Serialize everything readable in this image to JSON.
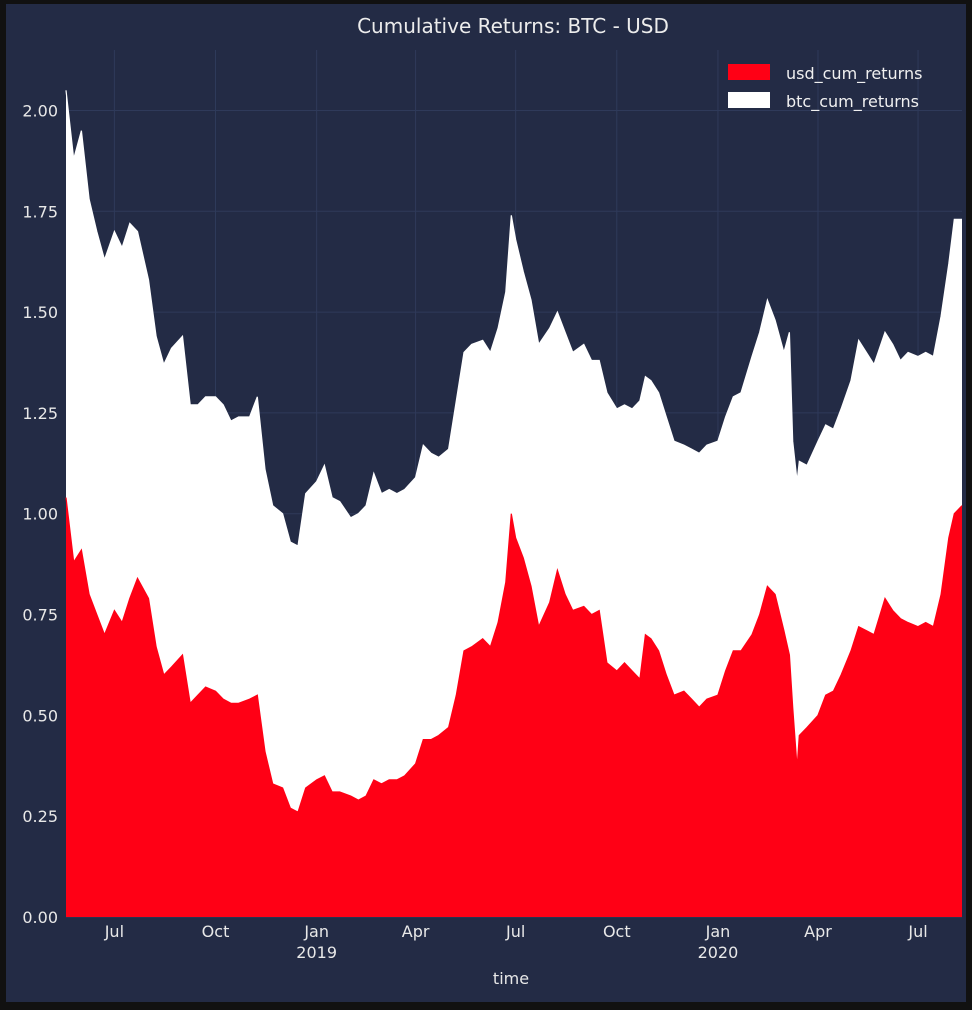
{
  "chart_data": {
    "type": "area",
    "title": "Cumulative Returns: BTC - USD",
    "xlabel": "time",
    "ylabel": "",
    "ylim": [
      0,
      2.15
    ],
    "x_range": [
      "2018-05-18",
      "2020-08-10"
    ],
    "yticks": [
      0.0,
      0.25,
      0.5,
      0.75,
      1.0,
      1.25,
      1.5,
      1.75,
      2.0
    ],
    "ytick_labels": [
      "0.00",
      "0.25",
      "0.50",
      "0.75",
      "1.00",
      "1.25",
      "1.50",
      "1.75",
      "2.00"
    ],
    "xticks": [
      {
        "date": "2018-07-01",
        "label": "Jul",
        "year": ""
      },
      {
        "date": "2018-10-01",
        "label": "Oct",
        "year": ""
      },
      {
        "date": "2019-01-01",
        "label": "Jan",
        "year": "2019"
      },
      {
        "date": "2019-04-01",
        "label": "Apr",
        "year": ""
      },
      {
        "date": "2019-07-01",
        "label": "Jul",
        "year": ""
      },
      {
        "date": "2019-10-01",
        "label": "Oct",
        "year": ""
      },
      {
        "date": "2020-01-01",
        "label": "Jan",
        "year": "2020"
      },
      {
        "date": "2020-04-01",
        "label": "Apr",
        "year": ""
      },
      {
        "date": "2020-07-01",
        "label": "Jul",
        "year": ""
      }
    ],
    "legend_position": "top-right",
    "grid": true,
    "series": [
      {
        "name": "btc_cum_returns",
        "color": "#ffffff",
        "points": [
          [
            "2018-05-18",
            2.05
          ],
          [
            "2018-05-25",
            1.88
          ],
          [
            "2018-06-01",
            1.95
          ],
          [
            "2018-06-08",
            1.78
          ],
          [
            "2018-06-15",
            1.7
          ],
          [
            "2018-06-22",
            1.63
          ],
          [
            "2018-07-01",
            1.7
          ],
          [
            "2018-07-08",
            1.66
          ],
          [
            "2018-07-15",
            1.72
          ],
          [
            "2018-07-22",
            1.7
          ],
          [
            "2018-08-01",
            1.58
          ],
          [
            "2018-08-08",
            1.44
          ],
          [
            "2018-08-15",
            1.37
          ],
          [
            "2018-08-22",
            1.41
          ],
          [
            "2018-09-01",
            1.44
          ],
          [
            "2018-09-08",
            1.27
          ],
          [
            "2018-09-15",
            1.27
          ],
          [
            "2018-09-22",
            1.29
          ],
          [
            "2018-10-01",
            1.29
          ],
          [
            "2018-10-08",
            1.27
          ],
          [
            "2018-10-15",
            1.23
          ],
          [
            "2018-10-22",
            1.24
          ],
          [
            "2018-11-01",
            1.24
          ],
          [
            "2018-11-08",
            1.29
          ],
          [
            "2018-11-15",
            1.11
          ],
          [
            "2018-11-22",
            1.02
          ],
          [
            "2018-12-01",
            1.0
          ],
          [
            "2018-12-08",
            0.93
          ],
          [
            "2018-12-15",
            0.92
          ],
          [
            "2018-12-22",
            1.05
          ],
          [
            "2019-01-01",
            1.08
          ],
          [
            "2019-01-08",
            1.12
          ],
          [
            "2019-01-15",
            1.04
          ],
          [
            "2019-01-22",
            1.03
          ],
          [
            "2019-02-01",
            0.99
          ],
          [
            "2019-02-08",
            1.0
          ],
          [
            "2019-02-15",
            1.02
          ],
          [
            "2019-02-22",
            1.1
          ],
          [
            "2019-03-01",
            1.05
          ],
          [
            "2019-03-08",
            1.06
          ],
          [
            "2019-03-15",
            1.05
          ],
          [
            "2019-03-22",
            1.06
          ],
          [
            "2019-04-01",
            1.09
          ],
          [
            "2019-04-08",
            1.17
          ],
          [
            "2019-04-15",
            1.15
          ],
          [
            "2019-04-22",
            1.14
          ],
          [
            "2019-05-01",
            1.16
          ],
          [
            "2019-05-08",
            1.28
          ],
          [
            "2019-05-15",
            1.4
          ],
          [
            "2019-05-22",
            1.42
          ],
          [
            "2019-06-01",
            1.43
          ],
          [
            "2019-06-08",
            1.4
          ],
          [
            "2019-06-15",
            1.46
          ],
          [
            "2019-06-22",
            1.55
          ],
          [
            "2019-06-27",
            1.74
          ],
          [
            "2019-07-01",
            1.68
          ],
          [
            "2019-07-08",
            1.6
          ],
          [
            "2019-07-15",
            1.53
          ],
          [
            "2019-07-22",
            1.42
          ],
          [
            "2019-08-01",
            1.46
          ],
          [
            "2019-08-08",
            1.5
          ],
          [
            "2019-08-15",
            1.45
          ],
          [
            "2019-08-22",
            1.4
          ],
          [
            "2019-09-01",
            1.42
          ],
          [
            "2019-09-08",
            1.38
          ],
          [
            "2019-09-15",
            1.38
          ],
          [
            "2019-09-22",
            1.3
          ],
          [
            "2019-10-01",
            1.26
          ],
          [
            "2019-10-08",
            1.27
          ],
          [
            "2019-10-15",
            1.26
          ],
          [
            "2019-10-22",
            1.28
          ],
          [
            "2019-10-27",
            1.34
          ],
          [
            "2019-11-01",
            1.33
          ],
          [
            "2019-11-08",
            1.3
          ],
          [
            "2019-11-15",
            1.24
          ],
          [
            "2019-11-22",
            1.18
          ],
          [
            "2019-12-01",
            1.17
          ],
          [
            "2019-12-08",
            1.16
          ],
          [
            "2019-12-15",
            1.15
          ],
          [
            "2019-12-22",
            1.17
          ],
          [
            "2020-01-01",
            1.18
          ],
          [
            "2020-01-08",
            1.24
          ],
          [
            "2020-01-15",
            1.29
          ],
          [
            "2020-01-22",
            1.3
          ],
          [
            "2020-02-01",
            1.39
          ],
          [
            "2020-02-08",
            1.45
          ],
          [
            "2020-02-15",
            1.53
          ],
          [
            "2020-02-22",
            1.48
          ],
          [
            "2020-03-01",
            1.4
          ],
          [
            "2020-03-06",
            1.45
          ],
          [
            "2020-03-09",
            1.18
          ],
          [
            "2020-03-13",
            1.08
          ],
          [
            "2020-03-15",
            1.13
          ],
          [
            "2020-03-22",
            1.12
          ],
          [
            "2020-04-01",
            1.18
          ],
          [
            "2020-04-08",
            1.22
          ],
          [
            "2020-04-15",
            1.21
          ],
          [
            "2020-04-22",
            1.26
          ],
          [
            "2020-05-01",
            1.33
          ],
          [
            "2020-05-08",
            1.43
          ],
          [
            "2020-05-15",
            1.4
          ],
          [
            "2020-05-22",
            1.37
          ],
          [
            "2020-06-01",
            1.45
          ],
          [
            "2020-06-08",
            1.42
          ],
          [
            "2020-06-15",
            1.38
          ],
          [
            "2020-06-22",
            1.4
          ],
          [
            "2020-07-01",
            1.39
          ],
          [
            "2020-07-08",
            1.4
          ],
          [
            "2020-07-15",
            1.39
          ],
          [
            "2020-07-22",
            1.49
          ],
          [
            "2020-07-29",
            1.62
          ],
          [
            "2020-08-03",
            1.73
          ],
          [
            "2020-08-10",
            1.73
          ]
        ]
      },
      {
        "name": "usd_cum_returns",
        "color": "#ff0015",
        "points": [
          [
            "2018-05-18",
            1.04
          ],
          [
            "2018-05-25",
            0.88
          ],
          [
            "2018-06-01",
            0.91
          ],
          [
            "2018-06-08",
            0.8
          ],
          [
            "2018-06-15",
            0.75
          ],
          [
            "2018-06-22",
            0.7
          ],
          [
            "2018-07-01",
            0.76
          ],
          [
            "2018-07-08",
            0.73
          ],
          [
            "2018-07-15",
            0.79
          ],
          [
            "2018-07-22",
            0.84
          ],
          [
            "2018-08-01",
            0.79
          ],
          [
            "2018-08-08",
            0.67
          ],
          [
            "2018-08-15",
            0.6
          ],
          [
            "2018-08-22",
            0.62
          ],
          [
            "2018-09-01",
            0.65
          ],
          [
            "2018-09-08",
            0.53
          ],
          [
            "2018-09-15",
            0.55
          ],
          [
            "2018-09-22",
            0.57
          ],
          [
            "2018-10-01",
            0.56
          ],
          [
            "2018-10-08",
            0.54
          ],
          [
            "2018-10-15",
            0.53
          ],
          [
            "2018-10-22",
            0.53
          ],
          [
            "2018-11-01",
            0.54
          ],
          [
            "2018-11-08",
            0.55
          ],
          [
            "2018-11-15",
            0.41
          ],
          [
            "2018-11-22",
            0.33
          ],
          [
            "2018-12-01",
            0.32
          ],
          [
            "2018-12-08",
            0.27
          ],
          [
            "2018-12-15",
            0.26
          ],
          [
            "2018-12-22",
            0.32
          ],
          [
            "2019-01-01",
            0.34
          ],
          [
            "2019-01-08",
            0.35
          ],
          [
            "2019-01-15",
            0.31
          ],
          [
            "2019-01-22",
            0.31
          ],
          [
            "2019-02-01",
            0.3
          ],
          [
            "2019-02-08",
            0.29
          ],
          [
            "2019-02-15",
            0.3
          ],
          [
            "2019-02-22",
            0.34
          ],
          [
            "2019-03-01",
            0.33
          ],
          [
            "2019-03-08",
            0.34
          ],
          [
            "2019-03-15",
            0.34
          ],
          [
            "2019-03-22",
            0.35
          ],
          [
            "2019-04-01",
            0.38
          ],
          [
            "2019-04-08",
            0.44
          ],
          [
            "2019-04-15",
            0.44
          ],
          [
            "2019-04-22",
            0.45
          ],
          [
            "2019-05-01",
            0.47
          ],
          [
            "2019-05-08",
            0.55
          ],
          [
            "2019-05-15",
            0.66
          ],
          [
            "2019-05-22",
            0.67
          ],
          [
            "2019-06-01",
            0.69
          ],
          [
            "2019-06-08",
            0.67
          ],
          [
            "2019-06-15",
            0.73
          ],
          [
            "2019-06-22",
            0.83
          ],
          [
            "2019-06-27",
            1.0
          ],
          [
            "2019-07-01",
            0.94
          ],
          [
            "2019-07-08",
            0.89
          ],
          [
            "2019-07-15",
            0.82
          ],
          [
            "2019-07-22",
            0.72
          ],
          [
            "2019-08-01",
            0.78
          ],
          [
            "2019-08-08",
            0.86
          ],
          [
            "2019-08-15",
            0.8
          ],
          [
            "2019-08-22",
            0.76
          ],
          [
            "2019-09-01",
            0.77
          ],
          [
            "2019-09-08",
            0.75
          ],
          [
            "2019-09-15",
            0.76
          ],
          [
            "2019-09-22",
            0.63
          ],
          [
            "2019-10-01",
            0.61
          ],
          [
            "2019-10-08",
            0.63
          ],
          [
            "2019-10-15",
            0.61
          ],
          [
            "2019-10-22",
            0.59
          ],
          [
            "2019-10-27",
            0.7
          ],
          [
            "2019-11-01",
            0.69
          ],
          [
            "2019-11-08",
            0.66
          ],
          [
            "2019-11-15",
            0.6
          ],
          [
            "2019-11-22",
            0.55
          ],
          [
            "2019-12-01",
            0.56
          ],
          [
            "2019-12-08",
            0.54
          ],
          [
            "2019-12-15",
            0.52
          ],
          [
            "2019-12-22",
            0.54
          ],
          [
            "2020-01-01",
            0.55
          ],
          [
            "2020-01-08",
            0.61
          ],
          [
            "2020-01-15",
            0.66
          ],
          [
            "2020-01-22",
            0.66
          ],
          [
            "2020-02-01",
            0.7
          ],
          [
            "2020-02-08",
            0.75
          ],
          [
            "2020-02-15",
            0.82
          ],
          [
            "2020-02-22",
            0.8
          ],
          [
            "2020-03-01",
            0.71
          ],
          [
            "2020-03-06",
            0.65
          ],
          [
            "2020-03-09",
            0.52
          ],
          [
            "2020-03-13",
            0.37
          ],
          [
            "2020-03-15",
            0.45
          ],
          [
            "2020-03-22",
            0.47
          ],
          [
            "2020-04-01",
            0.5
          ],
          [
            "2020-04-08",
            0.55
          ],
          [
            "2020-04-15",
            0.56
          ],
          [
            "2020-04-22",
            0.6
          ],
          [
            "2020-05-01",
            0.66
          ],
          [
            "2020-05-08",
            0.72
          ],
          [
            "2020-05-15",
            0.71
          ],
          [
            "2020-05-22",
            0.7
          ],
          [
            "2020-06-01",
            0.79
          ],
          [
            "2020-06-08",
            0.76
          ],
          [
            "2020-06-15",
            0.74
          ],
          [
            "2020-06-22",
            0.73
          ],
          [
            "2020-07-01",
            0.72
          ],
          [
            "2020-07-08",
            0.73
          ],
          [
            "2020-07-15",
            0.72
          ],
          [
            "2020-07-22",
            0.8
          ],
          [
            "2020-07-29",
            0.94
          ],
          [
            "2020-08-03",
            1.0
          ],
          [
            "2020-08-10",
            1.02
          ]
        ]
      }
    ]
  }
}
